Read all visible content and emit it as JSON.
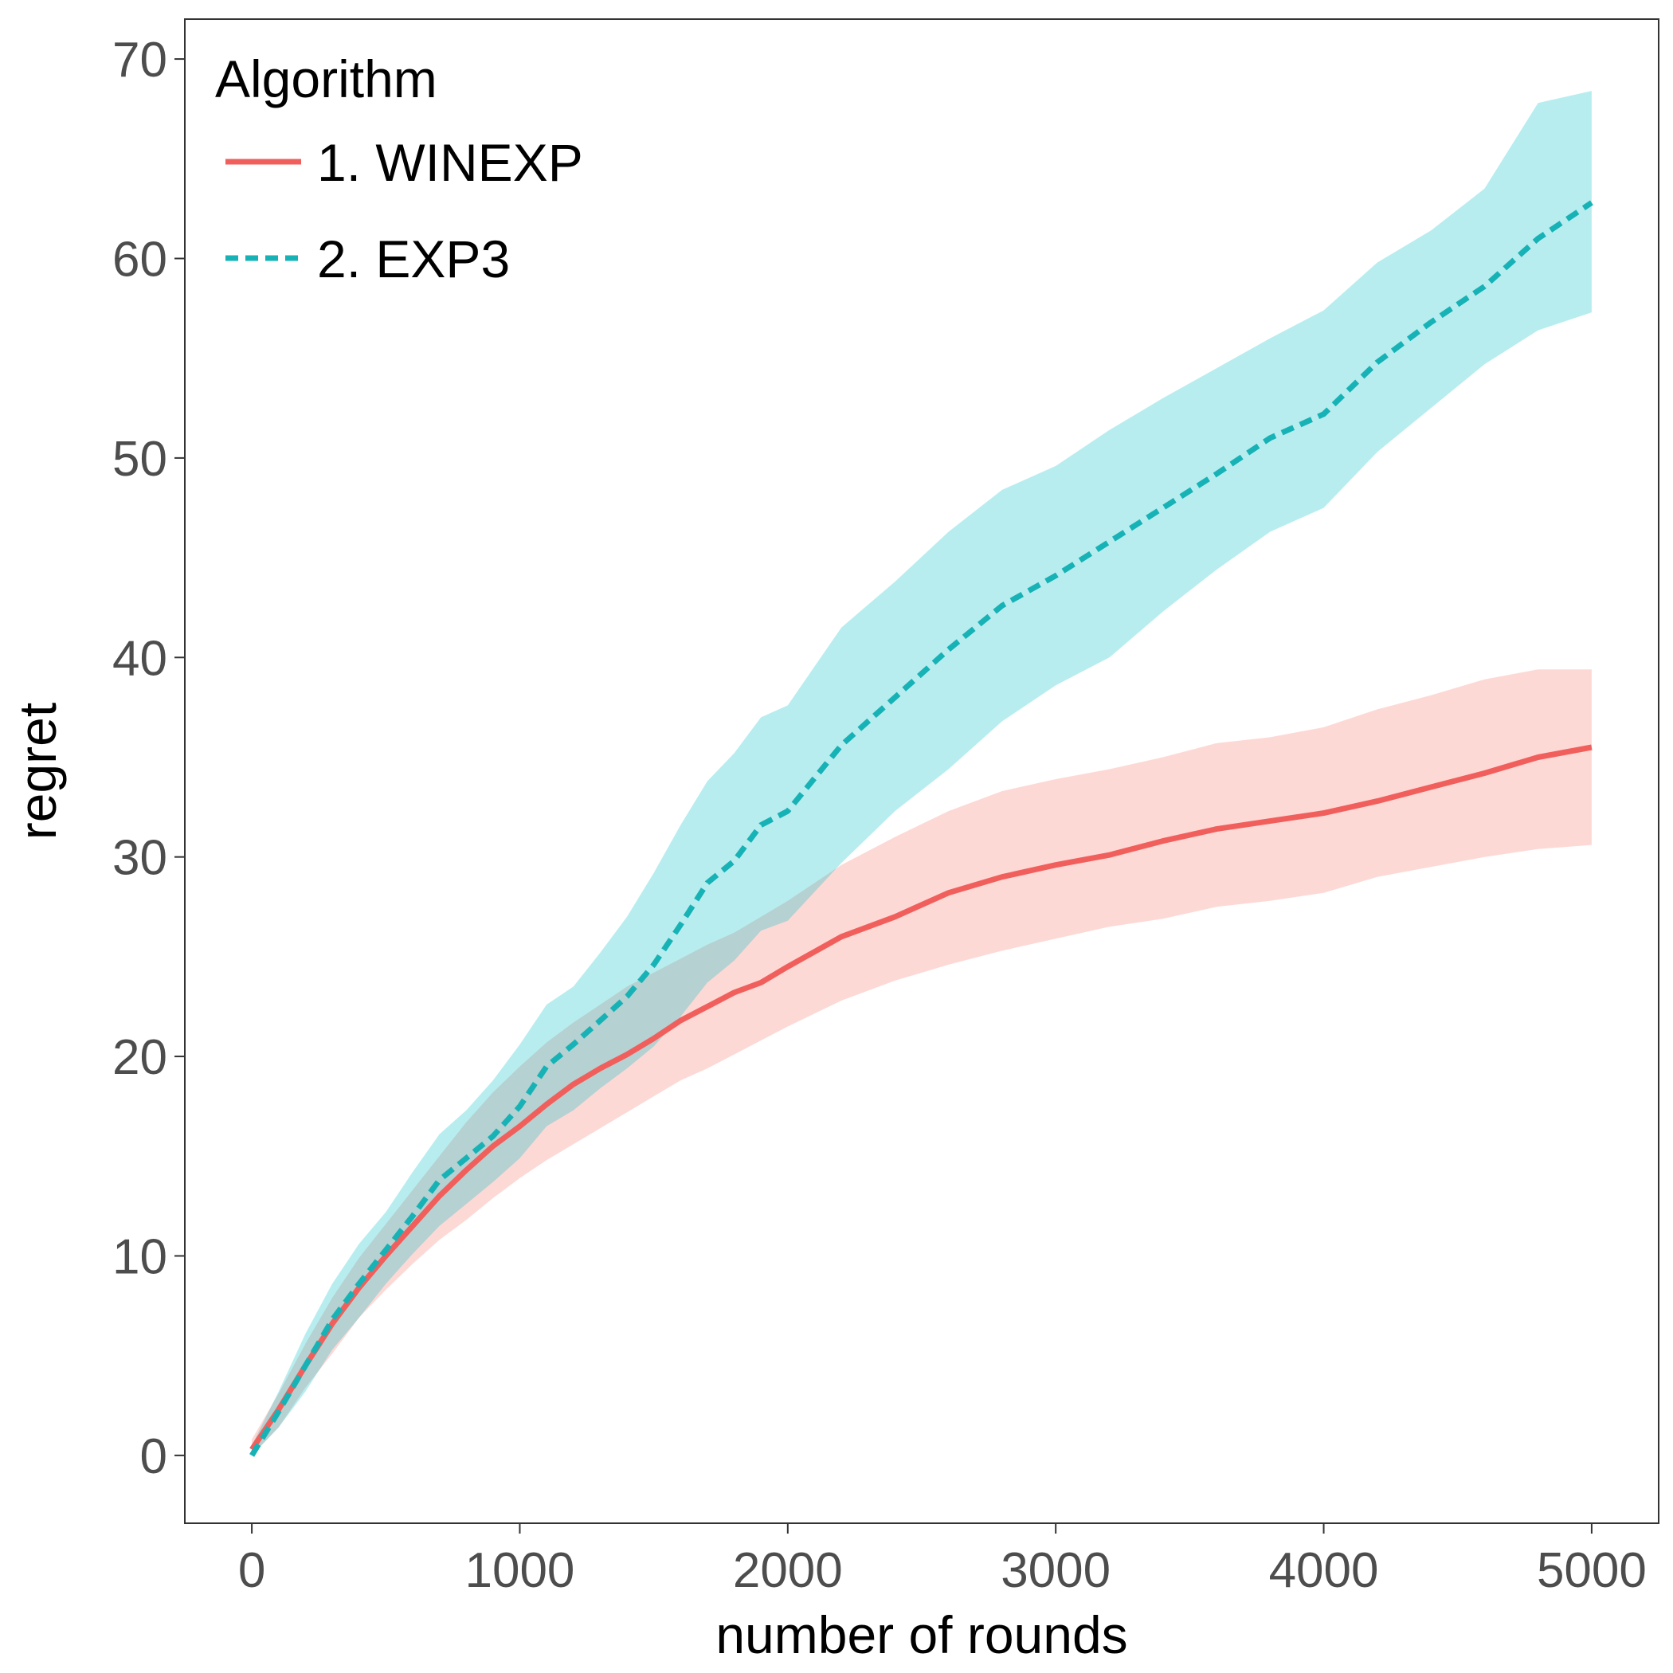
{
  "chart_data": {
    "type": "line",
    "title": "",
    "xlabel": "number of rounds",
    "ylabel": "regret",
    "xlim": [
      -250,
      5250
    ],
    "ylim": [
      -3.4,
      72
    ],
    "xticks": [
      0,
      1000,
      2000,
      3000,
      4000,
      5000
    ],
    "yticks": [
      0,
      10,
      20,
      30,
      40,
      50,
      60,
      70
    ],
    "grid": false,
    "legend": {
      "title": "Algorithm",
      "placement": "top-left"
    },
    "series": [
      {
        "name": "1. WINEXP",
        "color": "#f15f5c",
        "band_color": "#f8766d",
        "line_style": "solid",
        "x": [
          0,
          100,
          200,
          300,
          400,
          500,
          600,
          700,
          800,
          900,
          1000,
          1100,
          1200,
          1300,
          1400,
          1500,
          1600,
          1700,
          1800,
          1900,
          2000,
          2200,
          2400,
          2600,
          2800,
          3000,
          3200,
          3400,
          3600,
          3800,
          4000,
          4200,
          4400,
          4600,
          4800,
          5000
        ],
        "y": [
          0.3,
          2.3,
          4.5,
          6.6,
          8.4,
          10.0,
          11.5,
          13.0,
          14.3,
          15.5,
          16.5,
          17.6,
          18.6,
          19.4,
          20.1,
          20.9,
          21.8,
          22.5,
          23.2,
          23.7,
          24.5,
          26.0,
          27.0,
          28.2,
          29.0,
          29.6,
          30.1,
          30.8,
          31.4,
          31.8,
          32.2,
          32.8,
          33.5,
          34.2,
          35.0,
          35.5
        ],
        "lower": [
          0.0,
          1.4,
          3.4,
          5.1,
          6.9,
          8.3,
          9.6,
          10.8,
          11.8,
          12.9,
          13.9,
          14.8,
          15.6,
          16.4,
          17.2,
          18.0,
          18.8,
          19.4,
          20.1,
          20.8,
          21.5,
          22.8,
          23.8,
          24.6,
          25.3,
          25.9,
          26.5,
          26.9,
          27.5,
          27.8,
          28.2,
          29.0,
          29.5,
          30.0,
          30.4,
          30.6
        ],
        "upper": [
          0.8,
          3.1,
          5.6,
          7.9,
          9.9,
          11.6,
          13.3,
          15.0,
          16.7,
          18.2,
          19.5,
          20.7,
          21.7,
          22.6,
          23.5,
          24.2,
          24.9,
          25.6,
          26.2,
          27.0,
          27.8,
          29.6,
          31.0,
          32.3,
          33.3,
          33.9,
          34.4,
          35.0,
          35.7,
          36.0,
          36.5,
          37.4,
          38.1,
          38.9,
          39.4,
          39.4
        ]
      },
      {
        "name": "2. EXP3",
        "color": "#17b2b6",
        "band_color": "#00bfc4",
        "line_style": "dashed",
        "x": [
          0,
          100,
          200,
          300,
          400,
          500,
          600,
          700,
          800,
          900,
          1000,
          1100,
          1200,
          1300,
          1400,
          1500,
          1600,
          1700,
          1800,
          1900,
          2000,
          2200,
          2400,
          2600,
          2800,
          3000,
          3200,
          3400,
          3600,
          3800,
          4000,
          4200,
          4400,
          4600,
          4800,
          5000
        ],
        "y": [
          0.0,
          2.2,
          4.5,
          6.8,
          8.6,
          10.3,
          12.0,
          13.8,
          14.9,
          16.0,
          17.5,
          19.5,
          20.6,
          21.8,
          23.0,
          24.6,
          26.6,
          28.7,
          29.8,
          31.6,
          32.3,
          35.6,
          38.0,
          40.4,
          42.6,
          44.1,
          45.8,
          47.5,
          49.2,
          51.0,
          52.2,
          54.8,
          56.8,
          58.6,
          61.0,
          62.8
        ],
        "lower": [
          0.0,
          1.4,
          3.2,
          5.3,
          6.9,
          8.6,
          10.1,
          11.5,
          12.6,
          13.7,
          14.9,
          16.5,
          17.3,
          18.4,
          19.4,
          20.5,
          22.0,
          23.7,
          24.8,
          26.3,
          26.8,
          29.7,
          32.3,
          34.4,
          36.8,
          38.6,
          40.0,
          42.3,
          44.4,
          46.3,
          47.5,
          50.3,
          52.5,
          54.7,
          56.4,
          57.3
        ],
        "upper": [
          0.5,
          3.2,
          6.1,
          8.6,
          10.6,
          12.2,
          14.2,
          16.1,
          17.3,
          18.8,
          20.6,
          22.6,
          23.5,
          25.2,
          27.0,
          29.2,
          31.6,
          33.8,
          35.2,
          37.0,
          37.6,
          41.5,
          43.8,
          46.3,
          48.4,
          49.6,
          51.4,
          53.0,
          54.5,
          56.0,
          57.4,
          59.8,
          61.4,
          63.5,
          67.8,
          68.4
        ]
      }
    ]
  }
}
